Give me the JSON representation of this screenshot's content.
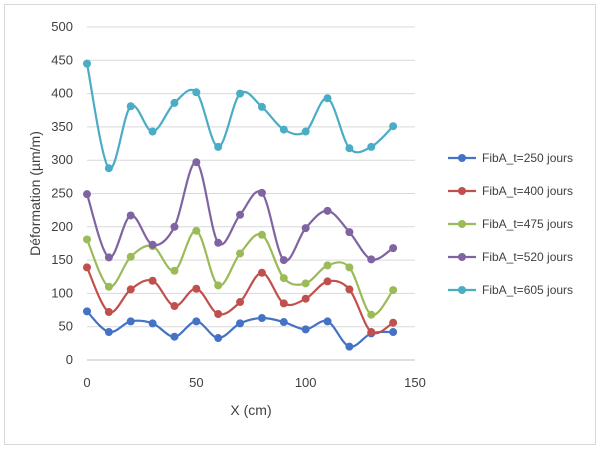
{
  "chart_data": {
    "type": "line",
    "title": "",
    "xlabel": "X (cm)",
    "ylabel": "Déformation (µm/m)",
    "xlim": [
      0,
      150
    ],
    "ylim": [
      0,
      500
    ],
    "xticks": [
      0,
      50,
      100,
      150
    ],
    "yticks": [
      0,
      50,
      100,
      150,
      200,
      250,
      300,
      350,
      400,
      450,
      500
    ],
    "grid": "horizontal",
    "legend_position": "right",
    "x": [
      0,
      10,
      20,
      30,
      40,
      50,
      60,
      70,
      80,
      90,
      100,
      110,
      120,
      130,
      140
    ],
    "series": [
      {
        "name": "FibA_t=250 jours",
        "color": "#4472C4",
        "values": [
          73,
          42,
          58,
          55,
          35,
          58,
          33,
          55,
          63,
          57,
          46,
          58,
          20,
          40,
          42
        ]
      },
      {
        "name": "FibA_t=400 jours",
        "color": "#C0504D",
        "values": [
          139,
          72,
          106,
          119,
          81,
          107,
          69,
          87,
          131,
          85,
          92,
          118,
          106,
          42,
          56
        ]
      },
      {
        "name": "FibA_t=475 jours",
        "color": "#9BBB59",
        "values": [
          181,
          110,
          155,
          171,
          134,
          194,
          112,
          160,
          188,
          123,
          115,
          142,
          139,
          68,
          105
        ]
      },
      {
        "name": "FibA_t=520 jours",
        "color": "#8064A2",
        "values": [
          249,
          154,
          217,
          173,
          200,
          297,
          176,
          218,
          251,
          150,
          198,
          224,
          192,
          151,
          168
        ]
      },
      {
        "name": "FibA_t=605 jours",
        "color": "#4BACC6",
        "values": [
          445,
          288,
          381,
          343,
          386,
          402,
          320,
          400,
          380,
          346,
          343,
          393,
          318,
          320,
          351
        ]
      }
    ]
  }
}
